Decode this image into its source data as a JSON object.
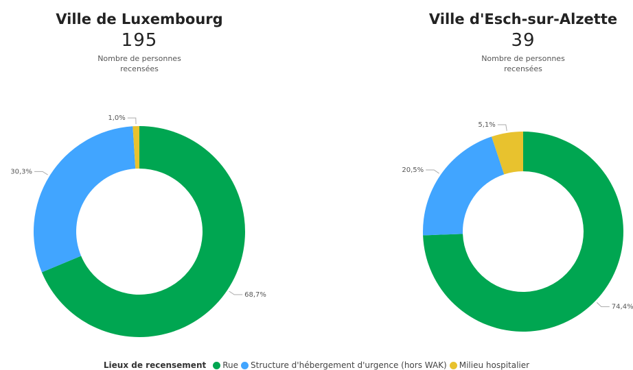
{
  "chart_data": [
    {
      "type": "donut",
      "title": "Ville de Luxembourg",
      "total": 195,
      "total_label": "Nombre de personnes recensées",
      "categories": [
        "Rue",
        "Structure d'hébergement d'urgence (hors WAK)",
        "Milieu hospitalier"
      ],
      "values": [
        68.7,
        30.3,
        1.0
      ],
      "value_labels": [
        "68,7%",
        "30,3%",
        "1,0%"
      ],
      "colors": [
        "#00a651",
        "#41a5ff",
        "#e8c22e"
      ]
    },
    {
      "type": "donut",
      "title": "Ville d'Esch-sur-Alzette",
      "total": 39,
      "total_label": "Nombre de personnes recensées",
      "categories": [
        "Rue",
        "Structure d'hébergement d'urgence (hors WAK)",
        "Milieu hospitalier"
      ],
      "values": [
        74.4,
        20.5,
        5.1
      ],
      "value_labels": [
        "74,4%",
        "20,5%",
        "5,1%"
      ],
      "colors": [
        "#00a651",
        "#41a5ff",
        "#e8c22e"
      ]
    }
  ],
  "legend_title": "Lieux de recensement"
}
